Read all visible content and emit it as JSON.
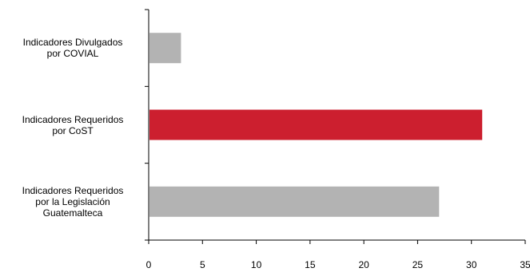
{
  "chart_data": {
    "type": "bar",
    "orientation": "horizontal",
    "title": "",
    "xlabel": "",
    "ylabel": "",
    "categories": [
      {
        "label_lines": [
          "Indicadores Divulgados",
          "por COVIAL"
        ]
      },
      {
        "label_lines": [
          "Indicadores Requeridos",
          "por CoST"
        ]
      },
      {
        "label_lines": [
          "Indicadores Requeridos",
          "por la Legislación",
          "Guatemalteca"
        ]
      }
    ],
    "values": [
      3,
      31,
      27
    ],
    "bar_colors": [
      "#b3b3b3",
      "#cc1f2f",
      "#b3b3b3"
    ],
    "xlim": [
      0,
      35
    ],
    "x_ticks": [
      "0",
      "5",
      "10",
      "15",
      "20",
      "25",
      "30",
      "35"
    ],
    "grid": false,
    "legend": "none"
  }
}
